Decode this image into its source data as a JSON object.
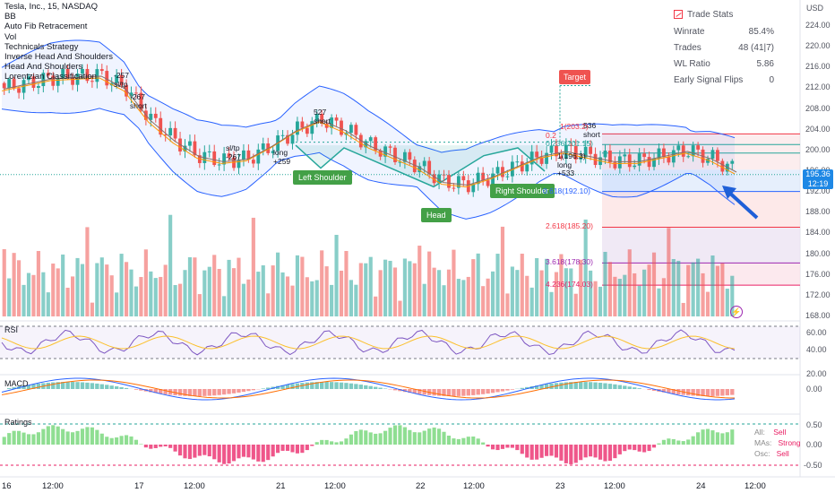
{
  "header": {
    "symbol_title": "Tesla, Inc., 15, NASDAQ",
    "indicators": [
      "BB",
      "Auto Fib Retracement",
      "Vol",
      "Technicals Strategy",
      "Inverse Head And Shoulders",
      "Head And Shoulders",
      "Lorentzian Classification"
    ]
  },
  "trade_stats": {
    "title": "Trade Stats",
    "rows": [
      {
        "label": "Winrate",
        "value": "85.4%"
      },
      {
        "label": "Trades",
        "value": "48 (41|7)"
      },
      {
        "label": "WL Ratio",
        "value": "5.86"
      },
      {
        "label": "Early Signal Flips",
        "value": "0"
      }
    ]
  },
  "price_axis": {
    "currency": "USD",
    "ticks": [
      "224.00",
      "220.00",
      "216.00",
      "212.00",
      "208.00",
      "204.00",
      "200.00",
      "196.00",
      "192.00",
      "188.00",
      "184.00",
      "180.00",
      "176.00",
      "172.00",
      "168.00"
    ],
    "last_price": "195.36",
    "countdown": "12:19"
  },
  "time_axis": [
    "16",
    "12:00",
    "17",
    "12:00",
    "21",
    "12:00",
    "22",
    "12:00",
    "23",
    "12:00",
    "24",
    "12:00"
  ],
  "patterns": {
    "left_shoulder": "Left Shoulder",
    "head": "Head",
    "right_shoulder": "Right Shoulder",
    "target": "Target"
  },
  "fib_levels": [
    {
      "label": "0.236(201.15)",
      "price": 201.15,
      "color": "#26a69a"
    },
    {
      "label": "0.618(192.10)",
      "price": 192.1,
      "color": "#2962ff"
    },
    {
      "label": "2.618(185.20)",
      "price": 185.2,
      "color": "#f23645"
    },
    {
      "label": "3.618(178.30)",
      "price": 178.3,
      "color": "#9c27b0"
    },
    {
      "label": "4.236(174.03)",
      "price": 174.03,
      "color": "#e91e63"
    }
  ],
  "fib_top_labels": [
    "1(203.2)",
    "0.2"
  ],
  "trade_labels": [
    {
      "id": "t1",
      "lines": [
        "-257",
        "sl/tp"
      ]
    },
    {
      "id": "t2",
      "lines": [
        "-267",
        "short"
      ]
    },
    {
      "id": "t3",
      "lines": [
        "sl/tp",
        "-267"
      ]
    },
    {
      "id": "t4",
      "lines": [
        "long",
        "+259"
      ]
    },
    {
      "id": "t5",
      "lines": [
        "527",
        "short"
      ]
    },
    {
      "id": "t6",
      "lines": [
        "536",
        "short"
      ]
    },
    {
      "id": "t7",
      "lines": [
        "1(196.3)",
        "long",
        "+533"
      ]
    }
  ],
  "panes": {
    "rsi": {
      "label": "RSI",
      "ticks": [
        "60.00",
        "40.00",
        "20.00"
      ]
    },
    "macd": {
      "label": "MACD",
      "ticks": [
        "0.00"
      ]
    },
    "ratings": {
      "label": "Ratings",
      "ticks": [
        "0.50",
        "0.00",
        "-0.50"
      ],
      "legend": [
        {
          "key": "All:",
          "value": "Sell"
        },
        {
          "key": "MAs:",
          "value": "Strong"
        },
        {
          "key": "Osc:",
          "value": "Sell"
        }
      ]
    }
  },
  "colors": {
    "up": "#26a69a",
    "down": "#ef5350",
    "bb": "#2962ff",
    "accent": "#1e88e5"
  }
}
